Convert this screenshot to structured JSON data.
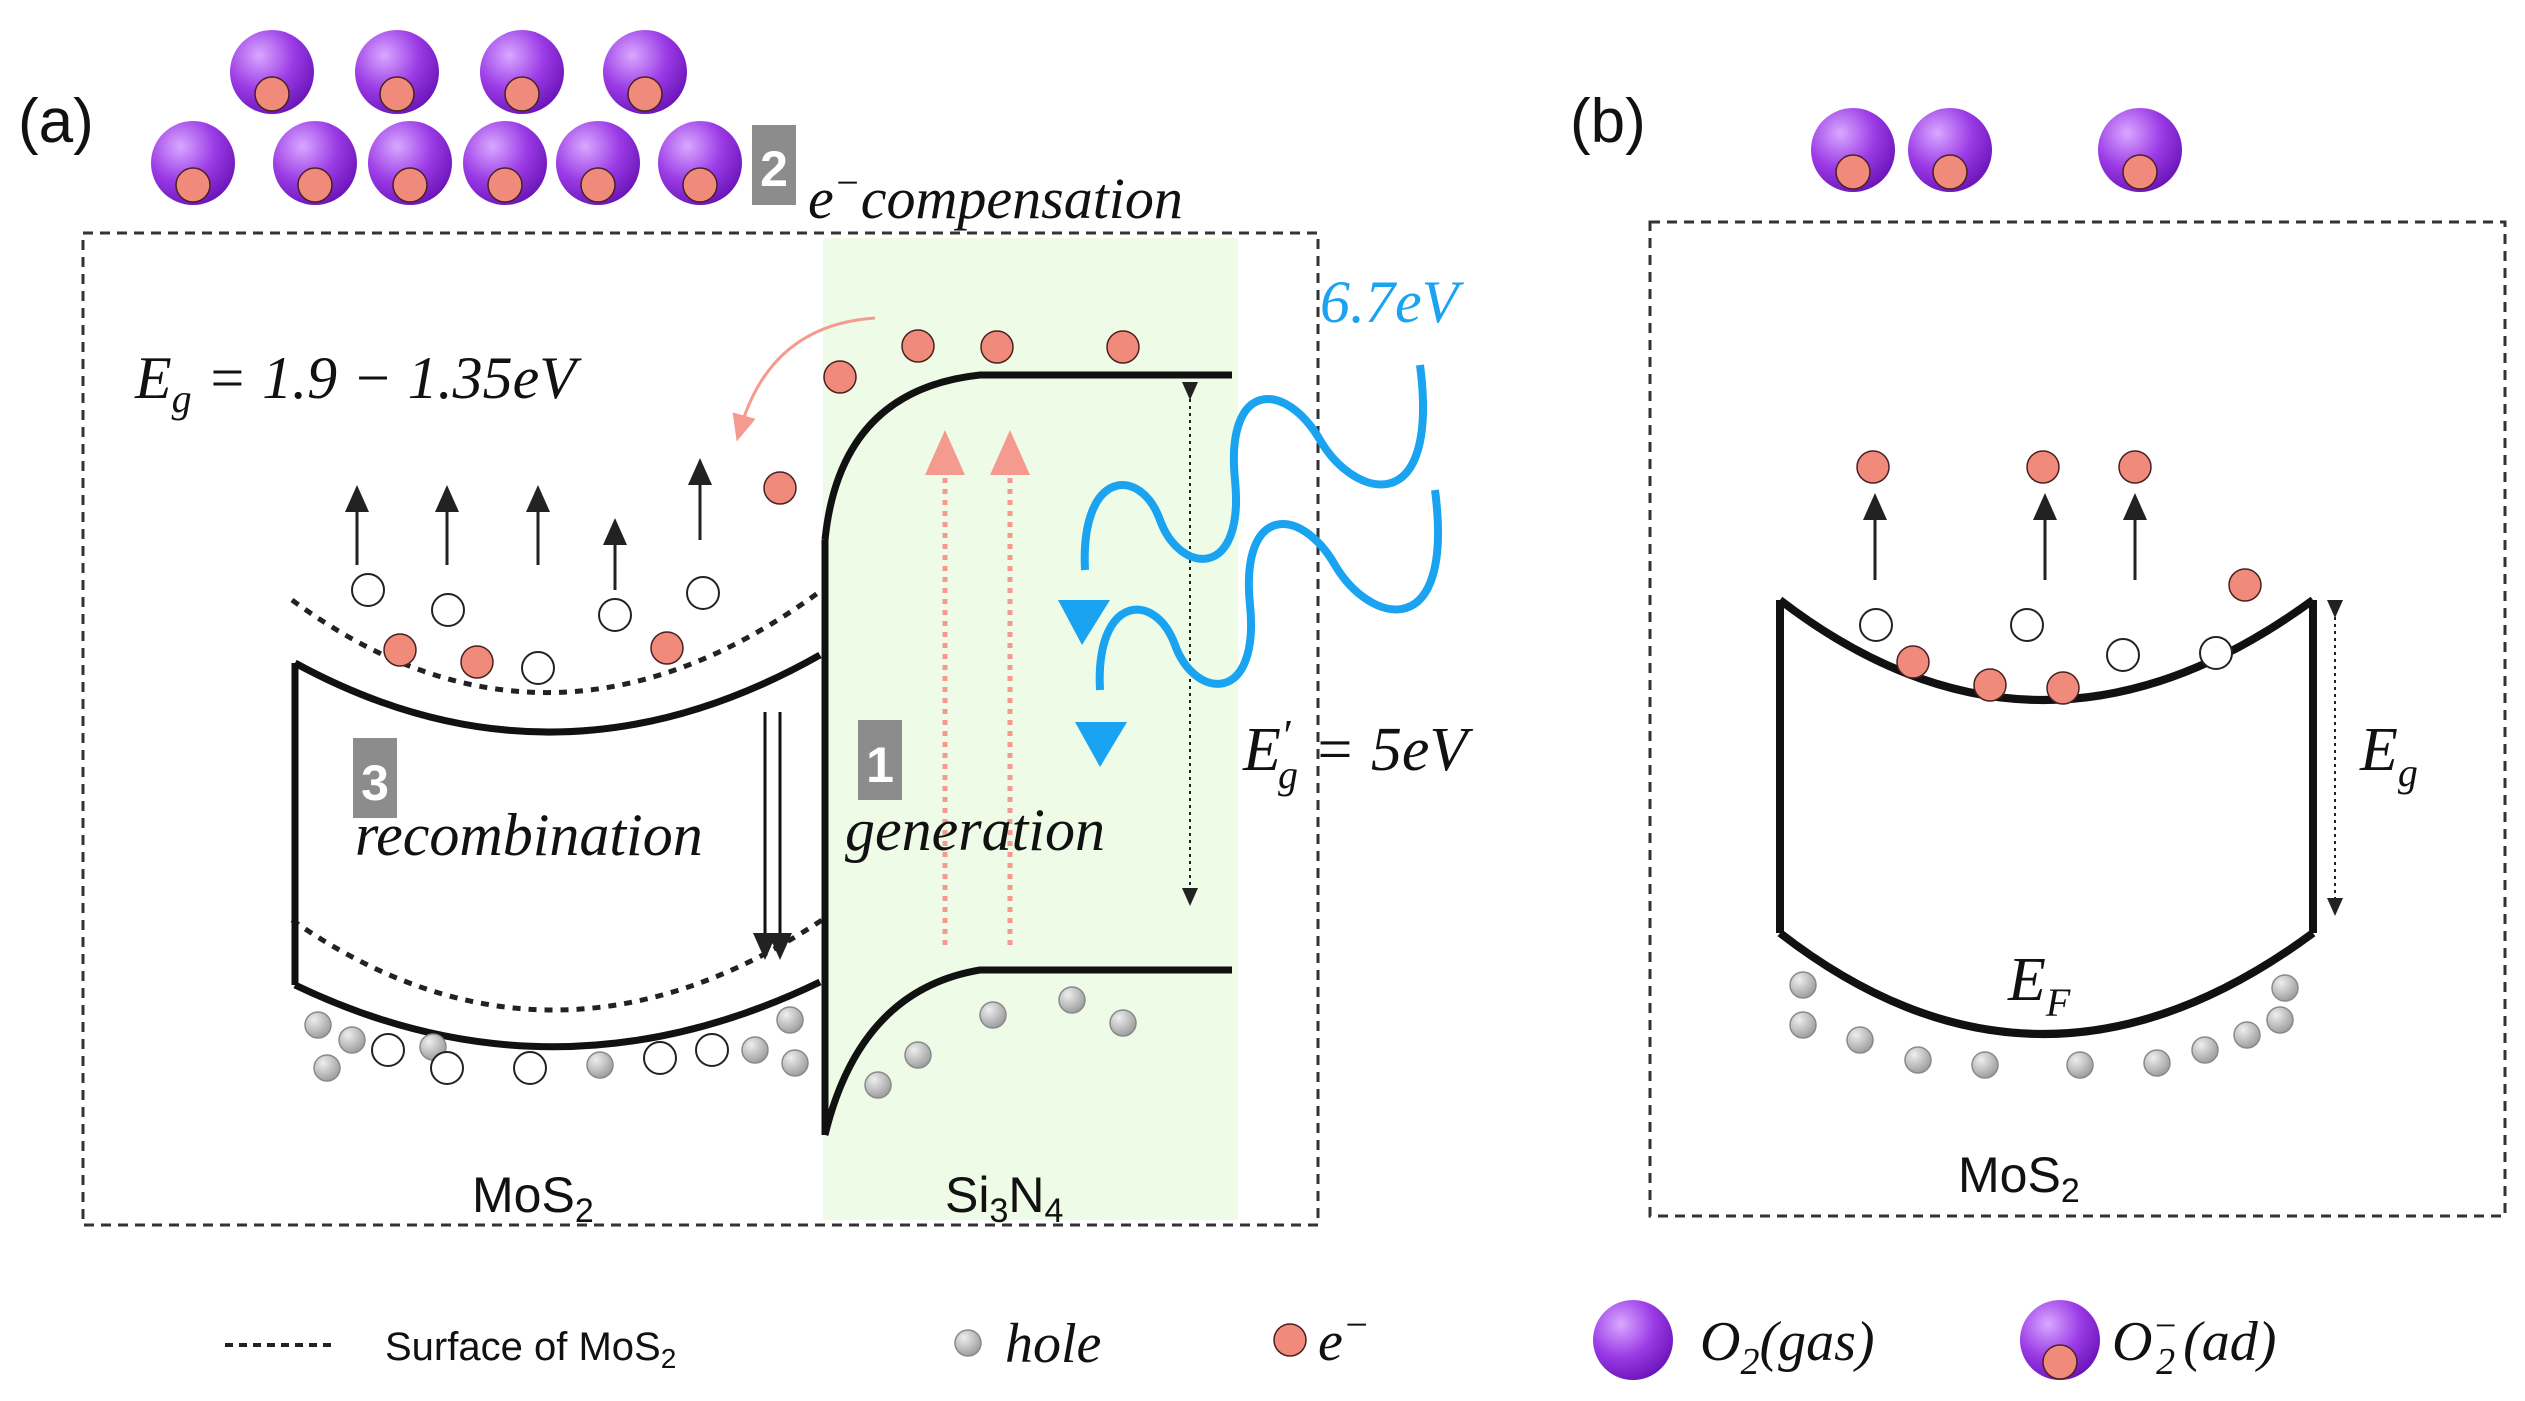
{
  "panels": {
    "a": {
      "label": "(a)",
      "material_left": "MoS",
      "material_left_sub": "2",
      "material_right_a": "Si",
      "material_right_b": "3",
      "material_right_c": "N",
      "material_right_d": "4",
      "eg_text": "E",
      "eg_sub": "g",
      "eg_value": " = 1.9 − 1.35eV",
      "photon_energy": "6.7eV",
      "eg_prime_a": "E",
      "eg_prime_b": "′",
      "eg_prime_sub": "g",
      "eg_prime_value": " = 5eV",
      "step1_num": "1",
      "step1_label": "generation",
      "step2_num": "2",
      "step2_e": "e",
      "step2_minus": "−",
      "step2_label": "compensation",
      "step3_num": "3",
      "step3_label": "recombination"
    },
    "b": {
      "label": "(b)",
      "material": "MoS",
      "material_sub": "2",
      "eg_label": "E",
      "eg_sub": "g",
      "ef_label": "E",
      "ef_sub": "F"
    }
  },
  "legend": {
    "surface_label_a": "Surface of MoS",
    "surface_label_sub": "2",
    "hole_label": "hole",
    "electron_e": "e",
    "electron_minus": "−",
    "o2_gas_a": "O",
    "o2_gas_sub": "2",
    "o2_gas_b": "(gas)",
    "o2_ad_a": "O",
    "o2_ad_sub": "2",
    "o2_ad_sup": "−",
    "o2_ad_b": "(ad)"
  },
  "colors": {
    "electron": "#f08b7c",
    "hole": "#b5b5b5",
    "oxygen": "#9b3be6",
    "photon": "#1aa3f0",
    "si3n4_bg": "#eefbe6",
    "badge": "#8c8c8c"
  }
}
